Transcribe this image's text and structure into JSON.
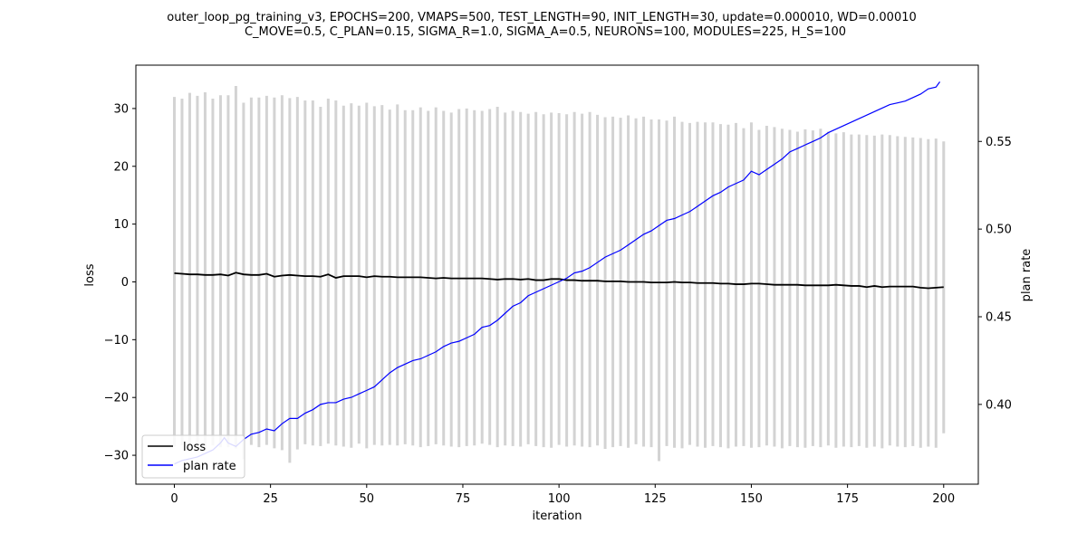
{
  "chart_data": {
    "type": "line",
    "title_lines": [
      "outer_loop_pg_training_v3, EPOCHS=200, VMAPS=500, TEST_LENGTH=90, INIT_LENGTH=30, update=0.000010, WD=0.00010",
      "C_MOVE=0.5, C_PLAN=0.15, SIGMA_R=1.0, SIGMA_A=0.5, NEURONS=100, MODULES=225, H_S=100"
    ],
    "xlabel": "iteration",
    "ylabel": "loss",
    "ylabel_right": "plan rate",
    "xlim": [
      -10,
      209
    ],
    "ylim": [
      -35,
      37.5
    ],
    "ylim_right": [
      0.3545,
      0.5935
    ],
    "xticks": [
      0,
      25,
      50,
      75,
      100,
      125,
      150,
      175,
      200
    ],
    "yticks": [
      -30,
      -20,
      -10,
      0,
      10,
      20,
      30
    ],
    "yticks_right": [
      0.4,
      0.45,
      0.5,
      0.55
    ],
    "ytick_labels_right": [
      "0.40",
      "0.45",
      "0.50",
      "0.55"
    ],
    "legend": {
      "position": "lower-left",
      "entries": [
        {
          "label": "loss",
          "color": "#000000"
        },
        {
          "label": "plan rate",
          "color": "#0000ff"
        }
      ]
    },
    "colors": {
      "loss": "#000000",
      "plan_rate": "#0000ff",
      "error_bar": "#d3d3d3"
    },
    "series": [
      {
        "name": "loss",
        "axis": "left",
        "x_start": 0,
        "x_step": 2,
        "values": [
          1.5,
          1.4,
          1.3,
          1.3,
          1.2,
          1.2,
          1.3,
          1.1,
          1.6,
          1.3,
          1.2,
          1.2,
          1.4,
          0.9,
          1.1,
          1.2,
          1.1,
          1.0,
          1.0,
          0.9,
          1.3,
          0.7,
          1.0,
          1.0,
          1.0,
          0.8,
          1.0,
          0.9,
          0.9,
          0.8,
          0.8,
          0.8,
          0.8,
          0.7,
          0.6,
          0.7,
          0.6,
          0.6,
          0.6,
          0.6,
          0.6,
          0.5,
          0.4,
          0.5,
          0.5,
          0.4,
          0.5,
          0.3,
          0.3,
          0.5,
          0.5,
          0.3,
          0.3,
          0.2,
          0.2,
          0.2,
          0.1,
          0.1,
          0.1,
          0.0,
          0.0,
          0.0,
          -0.1,
          -0.1,
          -0.1,
          0.0,
          -0.1,
          -0.1,
          -0.2,
          -0.2,
          -0.2,
          -0.3,
          -0.3,
          -0.4,
          -0.4,
          -0.3,
          -0.3,
          -0.4,
          -0.5,
          -0.5,
          -0.5,
          -0.5,
          -0.6,
          -0.6,
          -0.6,
          -0.6,
          -0.5,
          -0.6,
          -0.7,
          -0.7,
          -0.9,
          -0.7,
          -0.9,
          -0.8,
          -0.8,
          -0.8,
          -0.8,
          -1.0,
          -1.1,
          -1.0,
          -0.9
        ]
      },
      {
        "name": "plan rate",
        "axis": "right",
        "x": [
          0,
          2,
          4,
          6,
          8,
          10,
          12,
          13,
          14,
          16,
          18,
          20,
          22,
          24,
          26,
          27,
          28,
          30,
          32,
          34,
          36,
          38,
          40,
          42,
          44,
          46,
          48,
          50,
          52,
          54,
          56,
          58,
          60,
          62,
          64,
          66,
          68,
          70,
          72,
          74,
          76,
          78,
          80,
          82,
          84,
          86,
          88,
          90,
          92,
          94,
          96,
          98,
          100,
          102,
          104,
          106,
          108,
          110,
          112,
          114,
          116,
          118,
          120,
          122,
          124,
          126,
          128,
          130,
          132,
          134,
          136,
          138,
          140,
          142,
          144,
          146,
          148,
          150,
          152,
          154,
          156,
          158,
          160,
          162,
          164,
          166,
          168,
          170,
          172,
          174,
          176,
          178,
          180,
          182,
          184,
          186,
          188,
          190,
          192,
          194,
          196,
          198,
          199
        ],
        "values": [
          0.366,
          0.368,
          0.369,
          0.37,
          0.372,
          0.374,
          0.378,
          0.381,
          0.378,
          0.376,
          0.38,
          0.383,
          0.384,
          0.386,
          0.385,
          0.387,
          0.389,
          0.392,
          0.392,
          0.395,
          0.397,
          0.4,
          0.401,
          0.401,
          0.403,
          0.404,
          0.406,
          0.408,
          0.41,
          0.414,
          0.418,
          0.421,
          0.423,
          0.425,
          0.426,
          0.428,
          0.43,
          0.433,
          0.435,
          0.436,
          0.438,
          0.44,
          0.444,
          0.445,
          0.448,
          0.452,
          0.456,
          0.458,
          0.462,
          0.464,
          0.466,
          0.468,
          0.47,
          0.472,
          0.475,
          0.476,
          0.478,
          0.481,
          0.484,
          0.486,
          0.488,
          0.491,
          0.494,
          0.497,
          0.499,
          0.502,
          0.505,
          0.506,
          0.508,
          0.51,
          0.513,
          0.516,
          0.519,
          0.521,
          0.524,
          0.526,
          0.528,
          0.533,
          0.531,
          0.534,
          0.537,
          0.54,
          0.544,
          0.546,
          0.548,
          0.55,
          0.552,
          0.555,
          0.557,
          0.559,
          0.561,
          0.563,
          0.565,
          0.567,
          0.569,
          0.571,
          0.572,
          0.573,
          0.575,
          0.577,
          0.58,
          0.581,
          0.584
        ]
      }
    ],
    "error_bars": {
      "x_start": 0,
      "x_step": 2,
      "upper": [
        32.0,
        31.7,
        32.7,
        32.2,
        32.8,
        31.7,
        32.3,
        32.3,
        33.9,
        31.0,
        31.9,
        31.9,
        32.2,
        31.9,
        32.3,
        31.8,
        32.0,
        31.4,
        31.4,
        30.3,
        31.7,
        31.4,
        30.5,
        30.9,
        30.5,
        31.0,
        30.4,
        30.6,
        29.8,
        30.7,
        29.7,
        29.7,
        30.2,
        29.6,
        30.2,
        29.6,
        29.3,
        29.9,
        30.0,
        29.7,
        29.6,
        29.9,
        30.3,
        29.3,
        29.6,
        29.4,
        29.1,
        29.4,
        29.0,
        29.3,
        29.2,
        29.0,
        29.4,
        29.1,
        29.4,
        28.9,
        28.5,
        28.6,
        28.4,
        28.8,
        28.3,
        28.6,
        28.1,
        28.1,
        27.9,
        28.6,
        27.7,
        27.5,
        27.7,
        27.6,
        27.6,
        27.3,
        27.2,
        27.5,
        26.6,
        27.6,
        26.3,
        27.0,
        26.8,
        26.5,
        26.3,
        26.0,
        26.4,
        26.2,
        26.5,
        26.0,
        25.7,
        25.9,
        25.5,
        25.5,
        25.4,
        25.3,
        25.5,
        25.4,
        25.2,
        25.1,
        25.0,
        24.9,
        24.7,
        24.8,
        24.3
      ],
      "lower": [
        -28.5,
        -28.3,
        -28.6,
        -28.2,
        -28.9,
        -28.3,
        -28.6,
        -28.6,
        -28.8,
        -30.7,
        -28.2,
        -28.6,
        -28.2,
        -28.8,
        -29.1,
        -31.3,
        -29.0,
        -28.1,
        -28.3,
        -28.4,
        -28.0,
        -28.3,
        -28.5,
        -28.7,
        -28.0,
        -28.8,
        -28.2,
        -28.3,
        -28.2,
        -28.3,
        -28.1,
        -28.3,
        -28.6,
        -28.4,
        -28.1,
        -28.3,
        -28.5,
        -28.6,
        -28.4,
        -28.3,
        -28.0,
        -28.2,
        -28.6,
        -28.3,
        -28.4,
        -28.5,
        -28.1,
        -28.4,
        -28.6,
        -28.7,
        -28.2,
        -28.5,
        -28.3,
        -28.5,
        -28.6,
        -28.3,
        -28.9,
        -28.6,
        -28.4,
        -28.7,
        -28.1,
        -28.5,
        -28.6,
        -31.0,
        -28.4,
        -28.7,
        -28.8,
        -28.2,
        -28.5,
        -28.7,
        -28.4,
        -28.6,
        -28.8,
        -28.5,
        -28.4,
        -28.7,
        -28.6,
        -28.3,
        -28.5,
        -28.8,
        -28.4,
        -28.6,
        -28.7,
        -28.4,
        -28.6,
        -28.3,
        -28.7,
        -28.5,
        -28.6,
        -28.4,
        -28.7,
        -28.5,
        -28.8,
        -28.3,
        -28.5,
        -28.6,
        -28.4,
        -28.7,
        -28.5,
        -28.7,
        -26.2
      ]
    }
  }
}
